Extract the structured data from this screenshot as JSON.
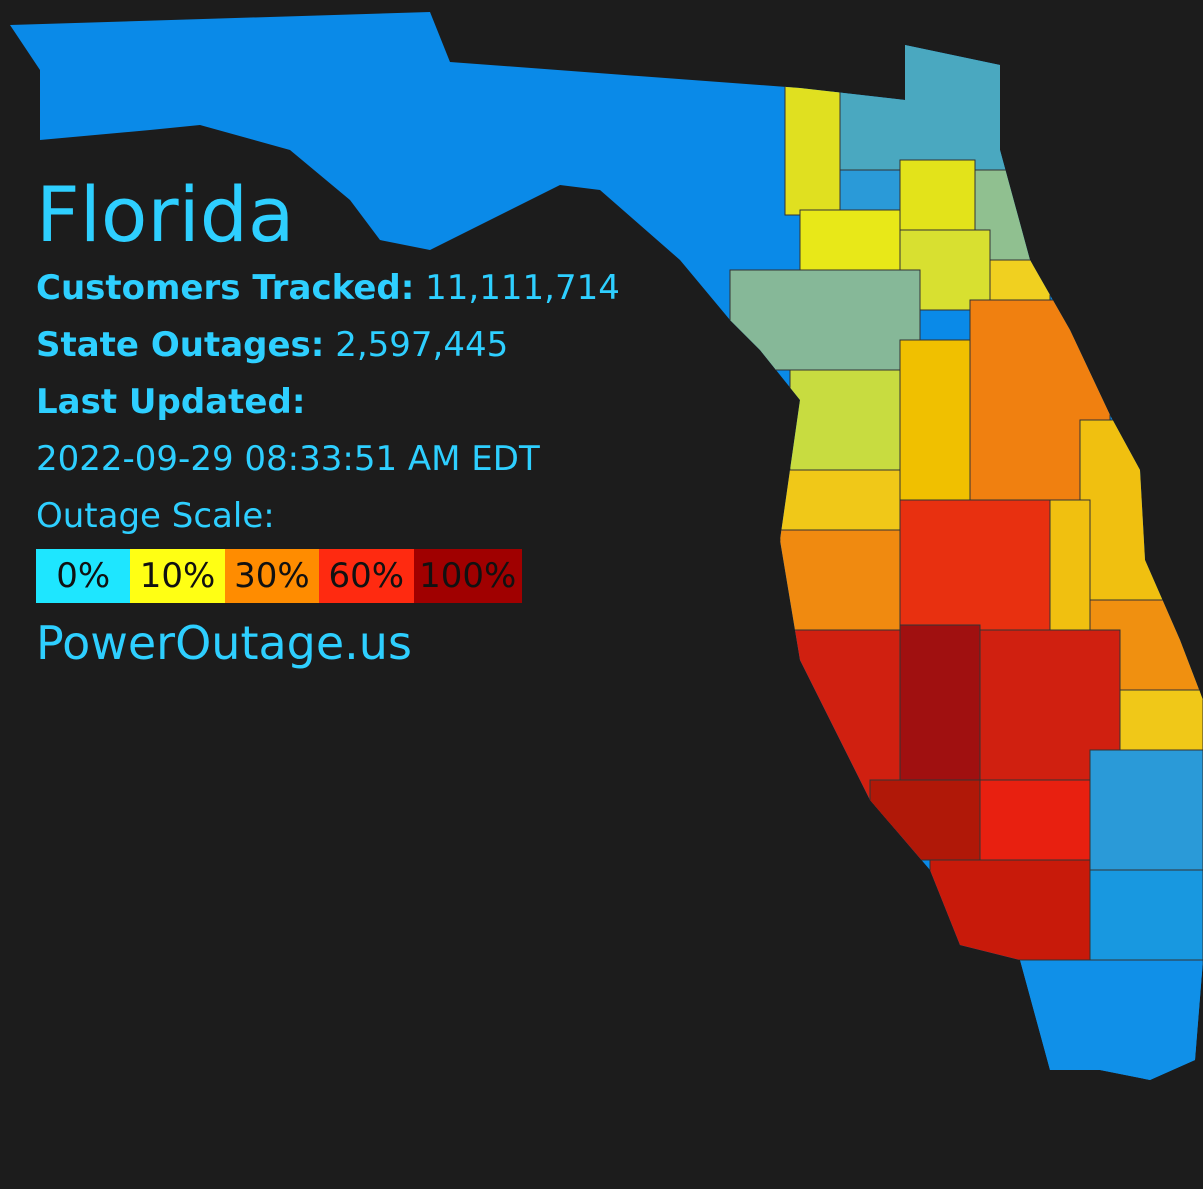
{
  "header": {
    "title": "Florida"
  },
  "stats": [
    {
      "label": "Customers Tracked:",
      "value": "11,111,714"
    },
    {
      "label": "State Outages:",
      "value": "2,597,445"
    }
  ],
  "updated": {
    "label": "Last Updated:",
    "value": "2022-09-29 08:33:51 AM EDT"
  },
  "scale": {
    "label": "Outage Scale:",
    "items": [
      {
        "label": "0%",
        "color": "#1ee6ff"
      },
      {
        "label": "10%",
        "color": "#ffff14"
      },
      {
        "label": "30%",
        "color": "#ff8c00"
      },
      {
        "label": "60%",
        "color": "#ff2a10"
      },
      {
        "label": "100%",
        "color": "#a00000"
      }
    ]
  },
  "site": "PowerOutage.us"
}
